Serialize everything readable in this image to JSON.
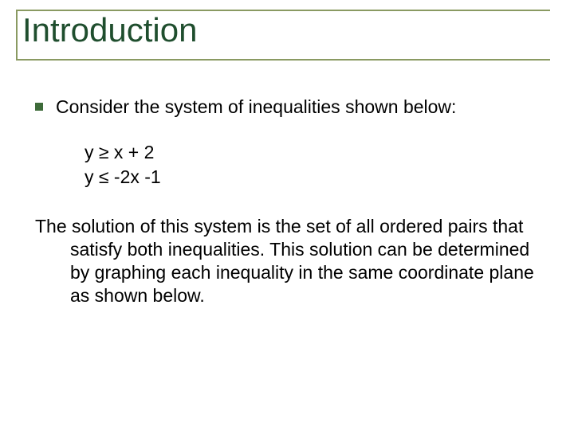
{
  "colors": {
    "title_color": "#1f4e2e",
    "rule_color": "#8a9a62",
    "bullet_color": "#3e6b3a",
    "text_color": "#000000",
    "background": "#ffffff"
  },
  "typography": {
    "title_fontsize": 42,
    "body_fontsize": 23,
    "font_family": "Arial"
  },
  "title": "Introduction",
  "bullet1": "Consider the system of inequalities shown below:",
  "eq1": "y ≥ x + 2",
  "eq2": "y ≤ -2x -1",
  "paragraph": "The solution of this system is the set of all ordered pairs that satisfy both inequalities.  This solution can be determined by graphing each inequality in the same coordinate plane as shown below."
}
